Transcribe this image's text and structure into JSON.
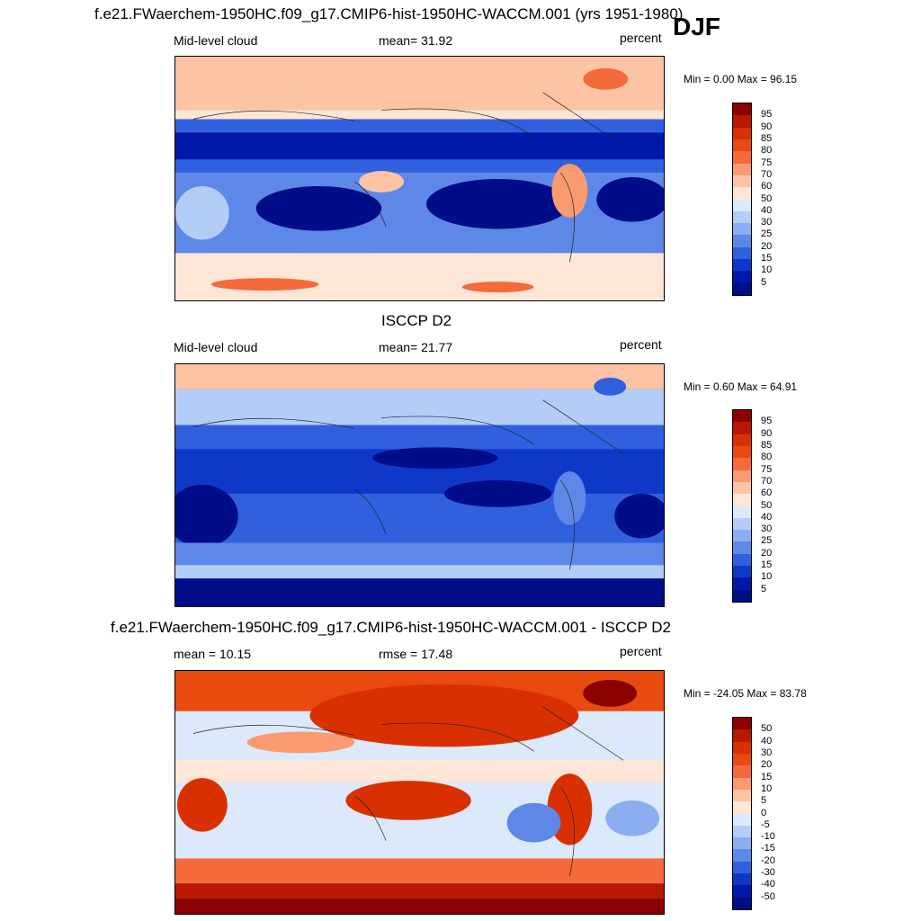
{
  "figure": {
    "season_label": "DJF"
  },
  "panels": [
    {
      "title": "f.e21.FWaerchem-1950HC.f09_g17.CMIP6-hist-1950HC-WACCM.001 (yrs 1951-1980)",
      "left_label": "Mid-level cloud",
      "center_label": "mean=  31.92",
      "right_label": "percent",
      "minmax": "Min =   0.00 Max =  96.15",
      "colorbar_labels": [
        "95",
        "90",
        "85",
        "80",
        "75",
        "70",
        "60",
        "50",
        "40",
        "30",
        "25",
        "20",
        "15",
        "10",
        "5"
      ]
    },
    {
      "title": "ISCCP D2",
      "left_label": "Mid-level cloud",
      "center_label": "mean=  21.77",
      "right_label": "percent",
      "minmax": "Min =   0.60 Max =  64.91",
      "colorbar_labels": [
        "95",
        "90",
        "85",
        "80",
        "75",
        "70",
        "60",
        "50",
        "40",
        "30",
        "25",
        "20",
        "15",
        "10",
        "5"
      ]
    },
    {
      "title": "f.e21.FWaerchem-1950HC.f09_g17.CMIP6-hist-1950HC-WACCM.001 - ISCCP D2",
      "left_label": "mean =  10.15",
      "center_label": "rmse =  17.48",
      "right_label": "percent",
      "minmax": "Min = -24.05 Max =  83.78",
      "colorbar_labels": [
        "50",
        "40",
        "30",
        "20",
        "15",
        "10",
        "5",
        "0",
        "-5",
        "-10",
        "-15",
        "-20",
        "-30",
        "-40",
        "-50"
      ]
    }
  ],
  "colors": {
    "abs_scale": [
      "#8b0000",
      "#b81800",
      "#d83000",
      "#e84a10",
      "#f46a3a",
      "#f99a70",
      "#fcc4a4",
      "#fde6d6",
      "#dce9fb",
      "#b4cdf6",
      "#8aaef0",
      "#5e88e8",
      "#3060de",
      "#1038c8",
      "#0018a8",
      "#000c88"
    ],
    "diff_scale": [
      "#8b0000",
      "#b81800",
      "#d83000",
      "#e84a10",
      "#f46a3a",
      "#f99a70",
      "#fcc4a4",
      "#fde6d6",
      "#dce9fb",
      "#b4cdf6",
      "#8aaef0",
      "#5e88e8",
      "#3060de",
      "#1038c8",
      "#0018a8",
      "#000c88"
    ]
  }
}
